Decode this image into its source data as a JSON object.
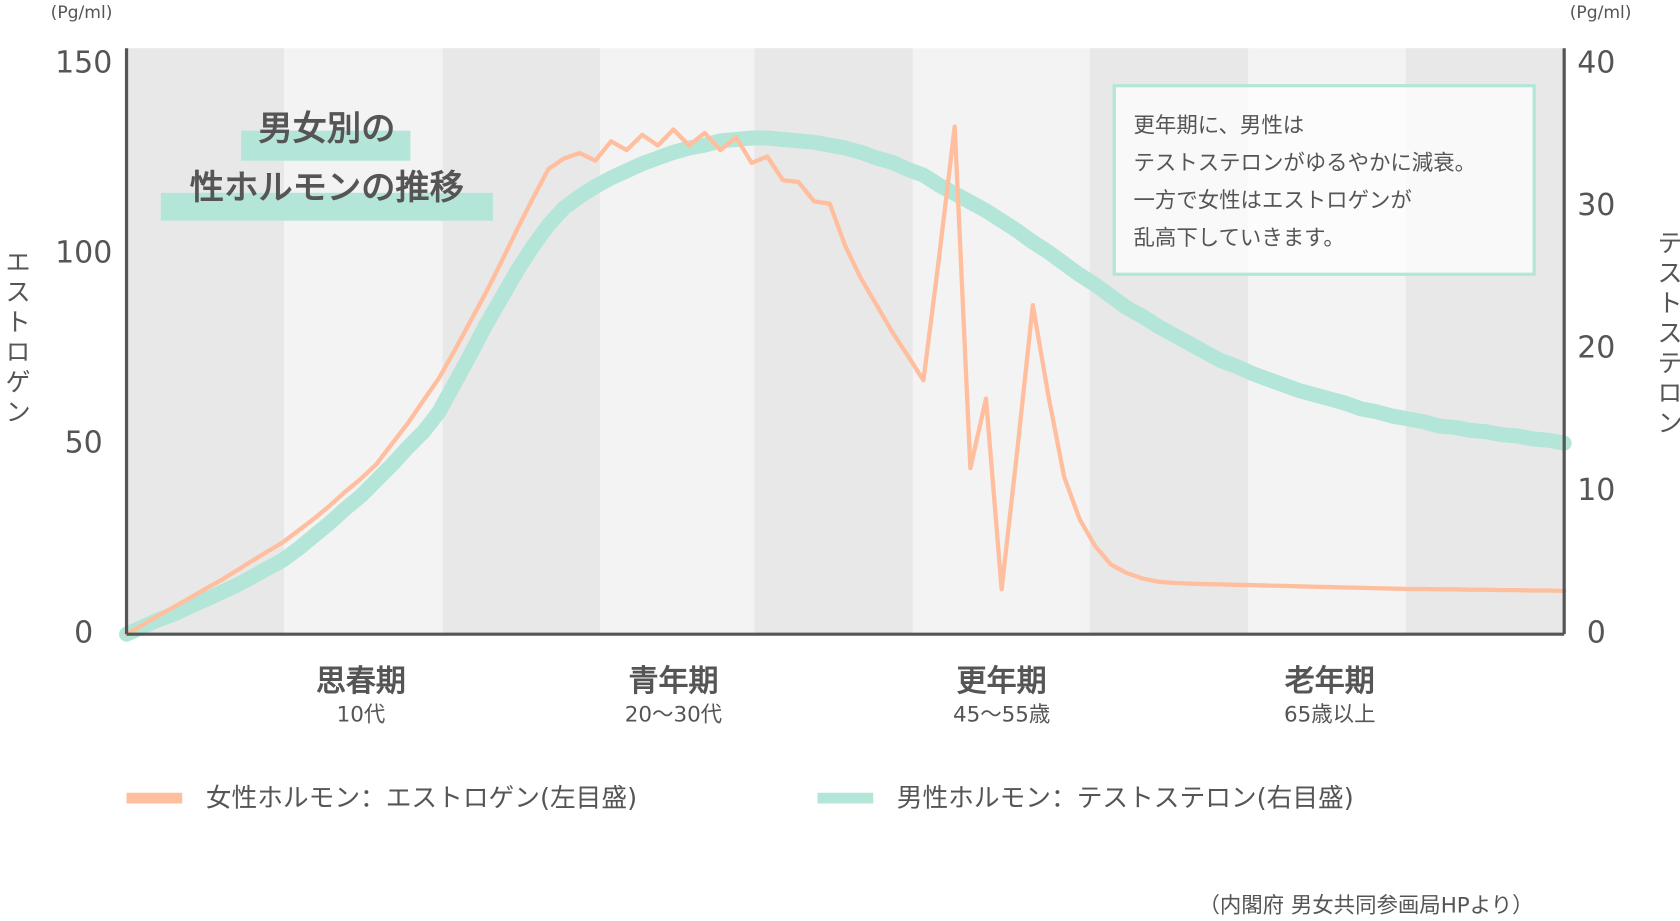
{
  "chart_data": {
    "type": "line",
    "title": [
      "男女別の",
      "性ホルモンの推移"
    ],
    "y_unit": "(Pg/ml)",
    "y2_unit": "(Pg/ml)",
    "y_label": "エストロゲン",
    "y2_label": "テストステロン",
    "annotation": [
      "更年期に、男性は",
      "テストステロンがゆるやかに減衰。",
      "一方で女性はエストロゲンが",
      "乱高下していきます。"
    ],
    "source": "（内閣府 男女共同参画局HPより）",
    "categories": [
      null,
      null,
      null,
      null,
      null,
      null,
      null,
      null,
      null,
      null,
      null,
      null,
      null,
      null,
      null,
      "思春期",
      null,
      null,
      null,
      null,
      null,
      null,
      null,
      null,
      null,
      null,
      null,
      null,
      null,
      null,
      null,
      null,
      null,
      null,
      null,
      "青年期",
      null,
      null,
      null,
      null,
      null,
      null,
      null,
      null,
      null,
      null,
      null,
      null,
      null,
      null,
      null,
      null,
      null,
      null,
      null,
      null,
      "更年期",
      null,
      null,
      null,
      null,
      null,
      null,
      null,
      null,
      null,
      null,
      null,
      null,
      null,
      null,
      null,
      null,
      null,
      null,
      null,
      null,
      "老年期",
      null,
      null,
      null,
      null,
      null,
      null,
      null,
      null,
      null,
      null,
      null,
      null,
      null,
      null,
      null
    ],
    "sublabels": [
      null,
      null,
      null,
      null,
      null,
      null,
      null,
      null,
      null,
      null,
      null,
      null,
      null,
      null,
      null,
      "10代",
      null,
      null,
      null,
      null,
      null,
      null,
      null,
      null,
      null,
      null,
      null,
      null,
      null,
      null,
      null,
      null,
      null,
      null,
      null,
      "20〜30代",
      null,
      null,
      null,
      null,
      null,
      null,
      null,
      null,
      null,
      null,
      null,
      null,
      null,
      null,
      null,
      null,
      null,
      null,
      null,
      null,
      "45〜55歳",
      null,
      null,
      null,
      null,
      null,
      null,
      null,
      null,
      null,
      null,
      null,
      null,
      null,
      null,
      null,
      null,
      null,
      null,
      null,
      null,
      "65歳以上",
      null,
      null,
      null,
      null,
      null,
      null,
      null,
      null,
      null,
      null,
      null,
      null,
      null,
      null,
      null
    ],
    "ylim": [
      0,
      154.2
    ],
    "yticks": [
      0,
      50,
      100,
      150
    ],
    "y2lim": [
      0,
      41.1
    ],
    "y2ticks": [
      0,
      10,
      20,
      30,
      40
    ],
    "series": [
      {
        "name": "女性ホルモン：エストロゲン(左目盛)",
        "color": "#ffbe9e",
        "values": [
          0,
          2.4,
          4.8,
          7.1,
          9.4,
          11.8,
          14.1,
          16.6,
          19.2,
          21.7,
          24.2,
          27.3,
          30.4,
          33.8,
          37.5,
          40.9,
          44.8,
          50.2,
          55.5,
          61.5,
          67.4,
          74.7,
          82.3,
          89.9,
          98.1,
          106.6,
          114.7,
          122.4,
          125.2,
          126.6,
          124.6,
          129.7,
          127.4,
          131.4,
          128.6,
          132.8,
          128.6,
          131.9,
          127.4,
          130.8,
          124.0,
          125.7,
          119.5,
          119.0,
          113.9,
          113.3,
          102.1,
          93.6,
          86.6,
          79.5,
          73.3,
          66.8,
          99.2,
          133.6,
          43.7,
          62.0,
          11.8,
          48.5,
          86.6,
          62.6,
          41.4,
          30.2,
          23.1,
          18.3,
          16.1,
          14.7,
          13.8,
          13.5,
          13.3,
          13.2,
          13.1,
          13.0,
          12.9,
          12.8,
          12.7,
          12.6,
          12.5,
          12.4,
          12.3,
          12.2,
          12.1,
          12.0,
          11.9,
          11.9,
          11.8,
          11.8,
          11.7,
          11.7,
          11.6,
          11.6,
          11.5,
          11.5,
          11.4
        ]
      },
      {
        "name": "男性ホルモン：テストステロン(右目盛)",
        "color": "#b3e6d8",
        "axis": "y2",
        "values": [
          0,
          0.5,
          1.0,
          1.4,
          1.9,
          2.4,
          2.9,
          3.4,
          4.0,
          4.6,
          5.2,
          6.0,
          6.9,
          7.8,
          8.8,
          9.7,
          10.8,
          11.9,
          13.1,
          14.2,
          15.6,
          17.6,
          19.6,
          21.7,
          23.6,
          25.5,
          27.2,
          28.7,
          29.9,
          30.7,
          31.4,
          32.0,
          32.5,
          33.0,
          33.4,
          33.8,
          34.1,
          34.3,
          34.6,
          34.7,
          34.8,
          34.8,
          34.7,
          34.6,
          34.5,
          34.3,
          34.1,
          33.8,
          33.4,
          33.1,
          32.6,
          32.2,
          31.5,
          30.9,
          30.3,
          29.7,
          29.0,
          28.3,
          27.5,
          26.8,
          26.0,
          25.2,
          24.5,
          23.7,
          22.9,
          22.3,
          21.6,
          21.0,
          20.4,
          19.8,
          19.2,
          18.8,
          18.3,
          17.9,
          17.5,
          17.1,
          16.8,
          16.5,
          16.2,
          15.8,
          15.6,
          15.3,
          15.1,
          14.9,
          14.6,
          14.5,
          14.3,
          14.2,
          14.0,
          13.9,
          13.7,
          13.6,
          13.4
        ]
      }
    ]
  }
}
